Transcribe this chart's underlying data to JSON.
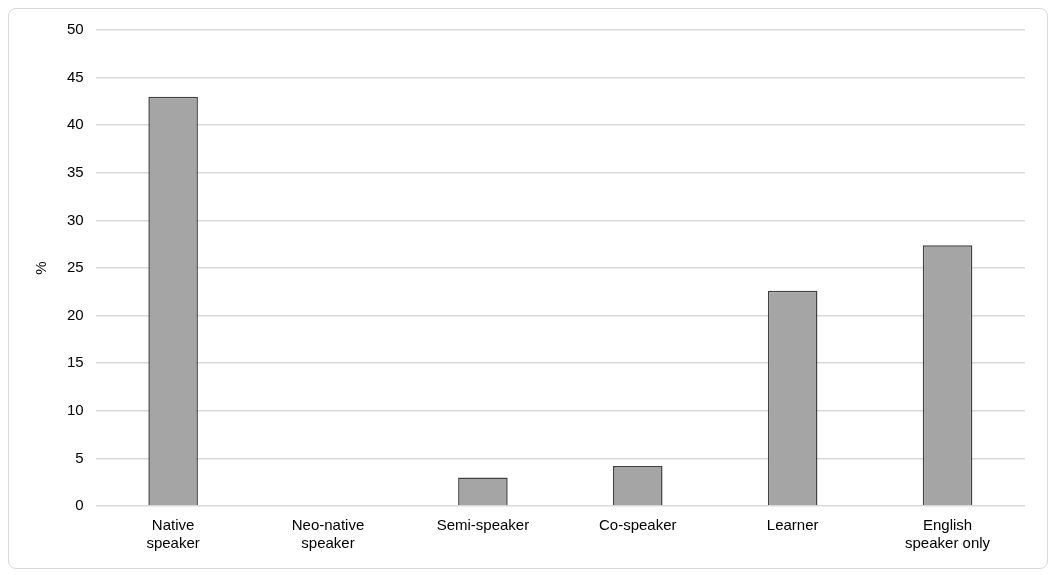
{
  "chart_data": {
    "type": "bar",
    "ylabel": "%",
    "categories": [
      "Native speaker",
      "Neo-native speaker",
      "Semi-speaker",
      "Co-speaker",
      "Learner",
      "English speaker only"
    ],
    "values": [
      43.0,
      0,
      3.0,
      4.2,
      22.6,
      27.4
    ],
    "color": "#a5a5a5",
    "ylim": [
      0,
      50
    ],
    "yticks": [
      0,
      5,
      10,
      15,
      20,
      25,
      30,
      35,
      40,
      45,
      50
    ],
    "grid": "y",
    "legend": false
  }
}
